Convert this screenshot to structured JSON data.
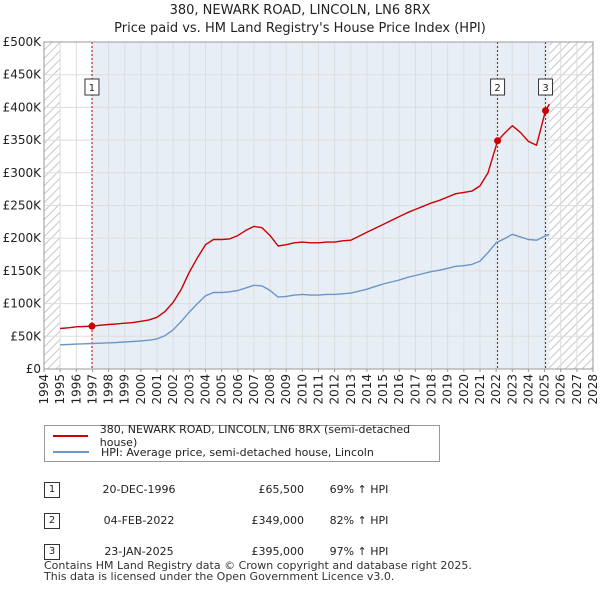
{
  "title_line1": "380, NEWARK ROAD, LINCOLN, LN6 8RX",
  "title_line2": "Price paid vs. HM Land Registry's House Price Index (HPI)",
  "colors": {
    "property": "#cc0000",
    "hpi": "#6a96c8",
    "hatch": "#c7c7c7",
    "band": "#e8eef6",
    "grid": "#dddddd"
  },
  "chart_data": {
    "type": "line",
    "title": "380, NEWARK ROAD, LINCOLN, LN6 8RX — Price paid vs. HM Land Registry's House Price Index (HPI)",
    "xlabel": "",
    "ylabel": "",
    "xlim": [
      1994,
      2028
    ],
    "ylim": [
      0,
      500000
    ],
    "grid": true,
    "x_ticks": [
      "1994",
      "1995",
      "1996",
      "1997",
      "1998",
      "1999",
      "2000",
      "2001",
      "2002",
      "2003",
      "2004",
      "2005",
      "2006",
      "2007",
      "2008",
      "2009",
      "2010",
      "2011",
      "2012",
      "2013",
      "2014",
      "2015",
      "2016",
      "2017",
      "2018",
      "2019",
      "2020",
      "2021",
      "2022",
      "2023",
      "2024",
      "2025",
      "2026",
      "2027",
      "2028"
    ],
    "y_ticks": [
      "£0",
      "£50K",
      "£100K",
      "£150K",
      "£200K",
      "£250K",
      "£300K",
      "£350K",
      "£400K",
      "£450K",
      "£500K"
    ],
    "y_tick_values": [
      0,
      50000,
      100000,
      150000,
      200000,
      250000,
      300000,
      350000,
      400000,
      450000,
      500000
    ],
    "data_start": 1995,
    "future_start": 2025.3,
    "series": [
      {
        "name": "380, NEWARK ROAD, LINCOLN, LN6 8RX (semi-detached house)",
        "color": "#cc0000",
        "x": [
          1995.0,
          1995.5,
          1996.0,
          1996.5,
          1996.97,
          1997.5,
          1998.0,
          1998.5,
          1999.0,
          1999.5,
          2000.0,
          2000.5,
          2001.0,
          2001.5,
          2002.0,
          2002.5,
          2003.0,
          2003.5,
          2004.0,
          2004.5,
          2005.0,
          2005.5,
          2006.0,
          2006.5,
          2007.0,
          2007.5,
          2008.0,
          2008.5,
          2009.0,
          2009.5,
          2010.0,
          2010.5,
          2011.0,
          2011.5,
          2012.0,
          2012.5,
          2013.0,
          2013.5,
          2014.0,
          2014.5,
          2015.0,
          2015.5,
          2016.0,
          2016.5,
          2017.0,
          2017.5,
          2018.0,
          2018.5,
          2019.0,
          2019.5,
          2020.0,
          2020.5,
          2021.0,
          2021.5,
          2022.09,
          2022.5,
          2023.0,
          2023.5,
          2024.0,
          2024.5,
          2025.06,
          2025.3
        ],
        "y": [
          62000,
          63000,
          64500,
          65000,
          65500,
          67000,
          68000,
          69000,
          70000,
          71000,
          73000,
          75000,
          79000,
          88000,
          102000,
          122000,
          148000,
          170000,
          190000,
          198000,
          198000,
          199000,
          204000,
          212000,
          218000,
          216000,
          204000,
          188000,
          190000,
          193000,
          194000,
          193000,
          193000,
          194000,
          194000,
          196000,
          197000,
          203000,
          209000,
          215000,
          221000,
          227000,
          233000,
          239000,
          244000,
          249000,
          254000,
          258000,
          263000,
          268000,
          270000,
          272000,
          280000,
          300000,
          349000,
          360000,
          372000,
          362000,
          348000,
          342000,
          395000,
          405000
        ]
      },
      {
        "name": "HPI: Average price, semi-detached house, Lincoln",
        "color": "#6a96c8",
        "x": [
          1995.0,
          1995.5,
          1996.0,
          1996.5,
          1997.0,
          1997.5,
          1998.0,
          1998.5,
          1999.0,
          1999.5,
          2000.0,
          2000.5,
          2001.0,
          2001.5,
          2002.0,
          2002.5,
          2003.0,
          2003.5,
          2004.0,
          2004.5,
          2005.0,
          2005.5,
          2006.0,
          2006.5,
          2007.0,
          2007.5,
          2008.0,
          2008.5,
          2009.0,
          2009.5,
          2010.0,
          2010.5,
          2011.0,
          2011.5,
          2012.0,
          2012.5,
          2013.0,
          2013.5,
          2014.0,
          2014.5,
          2015.0,
          2015.5,
          2016.0,
          2016.5,
          2017.0,
          2017.5,
          2018.0,
          2018.5,
          2019.0,
          2019.5,
          2020.0,
          2020.5,
          2021.0,
          2021.5,
          2022.0,
          2022.5,
          2023.0,
          2023.5,
          2024.0,
          2024.5,
          2025.0,
          2025.3
        ],
        "y": [
          37000,
          37500,
          38000,
          38500,
          39000,
          39500,
          40000,
          40500,
          41500,
          42000,
          43000,
          44000,
          46000,
          51000,
          60000,
          73000,
          87000,
          100000,
          112000,
          117000,
          117000,
          118000,
          120000,
          124000,
          128000,
          127000,
          120000,
          110000,
          111000,
          113000,
          114000,
          113000,
          113000,
          114000,
          114000,
          115000,
          116000,
          119000,
          122000,
          126000,
          130000,
          133000,
          136000,
          140000,
          143000,
          146000,
          149000,
          151000,
          154000,
          157000,
          158000,
          160000,
          165000,
          178000,
          193000,
          199000,
          206000,
          202000,
          198000,
          197000,
          203000,
          206000
        ]
      }
    ],
    "sales": [
      {
        "label": "1",
        "x": 1996.97,
        "y": 65500
      },
      {
        "label": "2",
        "x": 2022.09,
        "y": 349000
      },
      {
        "label": "3",
        "x": 2025.06,
        "y": 395000
      }
    ]
  },
  "legend": {
    "property_label": "380, NEWARK ROAD, LINCOLN, LN6 8RX (semi-detached house)",
    "hpi_label": "HPI: Average price, semi-detached house, Lincoln"
  },
  "sales_table": [
    {
      "num": "1",
      "date": "20-DEC-1996",
      "price": "£65,500",
      "hpi": "69% ↑ HPI"
    },
    {
      "num": "2",
      "date": "04-FEB-2022",
      "price": "£349,000",
      "hpi": "82% ↑ HPI"
    },
    {
      "num": "3",
      "date": "23-JAN-2025",
      "price": "£395,000",
      "hpi": "97% ↑ HPI"
    }
  ],
  "footer_line1": "Contains HM Land Registry data © Crown copyright and database right 2025.",
  "footer_line2": "This data is licensed under the Open Government Licence v3.0."
}
